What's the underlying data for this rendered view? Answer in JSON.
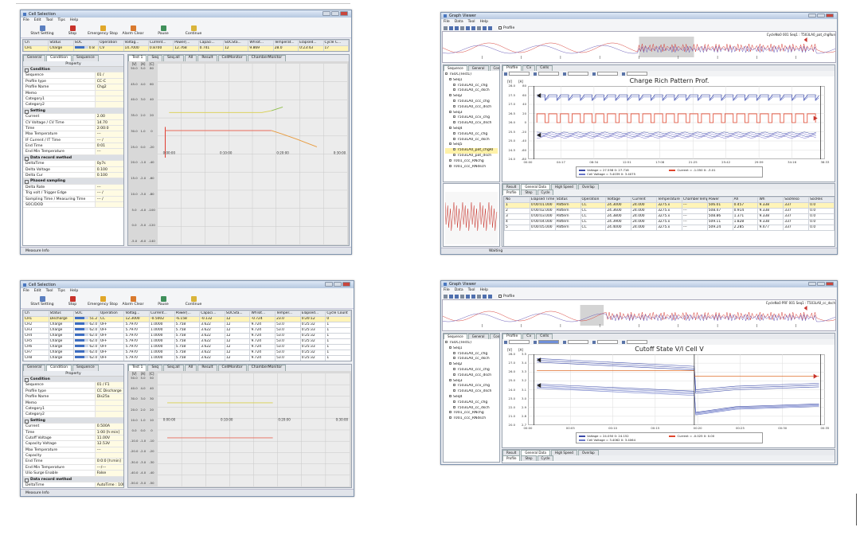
{
  "windows": [
    {
      "title": "Cell Selection",
      "menu": [
        "File",
        "Edit",
        "Tool",
        "Tips",
        "Help"
      ],
      "toolbar": [
        "Start Setting",
        "Stop",
        "Emergency Stop",
        "Alarm Clear",
        "Pause",
        "Continue"
      ],
      "grid": {
        "headers": [
          "Ch",
          "Status",
          "SOC",
          "Operation",
          "Voltag...",
          "Current...",
          "Power[...",
          "Capaci...",
          "SOCSta...",
          "WhTot...",
          "Temperat...",
          "Elapsed...",
          "Cycle C..."
        ],
        "rows": [
          [
            "CH1",
            "Charge",
            "0.8",
            "CV",
            "14.7000",
            "0.8700",
            "12.768",
            "0.741",
            "12",
            "9.869",
            "28.0",
            "0:23:43",
            "17"
          ]
        ]
      },
      "tabs": [
        "General",
        "Condition",
        "Sequence"
      ],
      "property_header": "Property",
      "properties": [
        {
          "group": "Condition"
        },
        {
          "name": "Sequence",
          "value": "01 /"
        },
        {
          "name": "Profile type",
          "value": "CC-C"
        },
        {
          "name": "Profile Name",
          "value": "Chg2"
        },
        {
          "name": "Memo"
        },
        {
          "name": "Category1"
        },
        {
          "name": "Category2"
        },
        {
          "group": "Setting"
        },
        {
          "name": "Current",
          "value": "2.00"
        },
        {
          "name": "CV Voltage / CV Time",
          "value": "14.70"
        },
        {
          "name": "Time",
          "value": "2:00:0"
        },
        {
          "name": "Max Temperature",
          "value": "---"
        },
        {
          "name": "IF Current / IT Time",
          "value": "--- /"
        },
        {
          "name": "End Time",
          "value": "0:01"
        },
        {
          "name": "End Min Temperature",
          "value": "---"
        },
        {
          "group": "Data record method"
        },
        {
          "name": "DeltaTime",
          "value": "0y7s"
        },
        {
          "name": "Delta Voltage",
          "value": "0.100"
        },
        {
          "name": "Delta Cur",
          "value": "0.100"
        },
        {
          "group": "Phased sampling"
        },
        {
          "name": "Delta Rate",
          "value": "---"
        },
        {
          "name": "Trig volt / Trigger Edge",
          "value": "--- /"
        },
        {
          "name": "Sampling Time / Measuring Time",
          "value": "--- /"
        },
        {
          "name": "SOC/DOD"
        }
      ],
      "chart_tabs": [
        "Test 1",
        "Seq",
        "Seq.all",
        "All",
        "Result",
        "CellMonitor",
        "ChamberMonitor"
      ],
      "yaxes": [
        {
          "head": "[V]",
          "ticks": [
            "50.0",
            "45.0",
            "40.0",
            "35.0",
            "30.0",
            "25.0",
            "20.0",
            "15.0",
            "10.0",
            "5.0",
            "0.0",
            "-5.0"
          ]
        },
        {
          "head": "[A]",
          "ticks": [
            "5.0",
            "4.0",
            "3.0",
            "2.0",
            "1.0",
            "0.0",
            "-1.0",
            "-2.0",
            "-3.0",
            "-4.0",
            "-5.0",
            "-6.0"
          ]
        },
        {
          "head": "[C]",
          "ticks": [
            "80",
            "60",
            "40",
            "20",
            "0",
            "-20",
            "-40",
            "-60",
            "-80",
            "-100",
            "-120",
            "-140"
          ]
        }
      ],
      "xticks": [
        "0:00:00",
        "0:10:00",
        "0:20:00",
        "0:30:00"
      ],
      "footer": "Measure Info"
    },
    {
      "title": "Cell Selection",
      "menu": [
        "File",
        "Edit",
        "Tool",
        "Tips",
        "Help"
      ],
      "toolbar": [
        "Start Setting",
        "Stop",
        "Emergency Stop",
        "Alarm Clear",
        "Pause",
        "Continue"
      ],
      "grid": {
        "headers": [
          "Ch",
          "Status",
          "SOC",
          "Operation",
          "Voltag...",
          "Current...",
          "Power[...",
          "Capaci...",
          "SOCSta...",
          "WhTot...",
          "Temper...",
          "Elapsed...",
          "Cycle Count"
        ],
        "rows": [
          [
            "CH1",
            "Discharge",
            "51.2",
            "CC",
            "12.3000",
            "-0.5002",
            "-6.158",
            "-0.132",
            "12",
            "-0.724",
            "23.0",
            "0:20:12",
            "0"
          ],
          [
            "CH2",
            "Charge",
            "62.0",
            "OFF",
            "5.7970",
            "1.0000",
            "5.758",
            "3.622",
            "12",
            "9.724",
            "53.0",
            "0:25:32",
            "1"
          ],
          [
            "CH3",
            "Charge",
            "62.0",
            "OFF",
            "5.7970",
            "1.0000",
            "5.758",
            "3.622",
            "12",
            "9.724",
            "53.0",
            "0:25:33",
            "1"
          ],
          [
            "CH4",
            "Charge",
            "62.0",
            "OFF",
            "5.7970",
            "1.0000",
            "5.758",
            "3.622",
            "12",
            "9.724",
            "53.0",
            "0:25:32",
            "1"
          ],
          [
            "CH5",
            "Charge",
            "62.0",
            "OFF",
            "5.7970",
            "1.0000",
            "5.758",
            "3.622",
            "12",
            "9.724",
            "53.0",
            "0:25:32",
            "1"
          ],
          [
            "CH6",
            "Charge",
            "62.0",
            "OFF",
            "5.7970",
            "1.0000",
            "5.758",
            "3.622",
            "12",
            "9.724",
            "53.0",
            "0:25:33",
            "1"
          ],
          [
            "CH7",
            "Charge",
            "62.0",
            "OFF",
            "5.7970",
            "1.0000",
            "5.758",
            "3.622",
            "12",
            "9.724",
            "53.0",
            "0:25:32",
            "1"
          ],
          [
            "CH8",
            "Charge",
            "62.0",
            "OFF",
            "5.7970",
            "1.0000",
            "5.758",
            "3.622",
            "12",
            "9.724",
            "53.0",
            "0:25:32",
            "1"
          ]
        ]
      },
      "tabs": [
        "General",
        "Condition",
        "Sequence"
      ],
      "property_header": "Property",
      "properties": [
        {
          "group": "Condition"
        },
        {
          "name": "Sequence",
          "value": "01 / F1"
        },
        {
          "name": "Profile type",
          "value": "CC Discharge"
        },
        {
          "name": "Profile Name",
          "value": "Dis25a"
        },
        {
          "name": "Memo"
        },
        {
          "name": "Category1"
        },
        {
          "name": "Category2"
        },
        {
          "group": "Setting"
        },
        {
          "name": "Current",
          "value": "0.500A"
        },
        {
          "name": "Time",
          "value": "1:00 [h:min]"
        },
        {
          "name": "Cutoff Voltage",
          "value": "11.00V"
        },
        {
          "name": "Capacity Voltage",
          "value": "12.53V"
        },
        {
          "name": "Max Temperature",
          "value": "---"
        },
        {
          "name": "Capacity"
        },
        {
          "name": "End Time",
          "value": "0:0:0 [h:min]"
        },
        {
          "name": "End Min Temperature",
          "value": "---/---"
        },
        {
          "name": "Ulio Surge Enable",
          "value": "False"
        },
        {
          "group": "Data record method"
        },
        {
          "name": "DeltaTime",
          "value": "AutoTime : 10MPs"
        }
      ],
      "chart_tabs": [
        "Test 1",
        "Seq",
        "Seq.all",
        "All",
        "Result",
        "CellMonitor",
        "ChamberMonitor"
      ],
      "yaxes": [
        {
          "head": "[V]",
          "ticks": [
            "50.0",
            "40.0",
            "30.0",
            "20.0",
            "10.0",
            "0.0",
            "-10.0",
            "-20.0",
            "-30.0",
            "-40.0",
            "-50.0"
          ]
        },
        {
          "head": "[A]",
          "ticks": [
            "5.0",
            "4.0",
            "3.0",
            "2.0",
            "1.0",
            "0.0",
            "-1.0",
            "-2.0",
            "-3.0",
            "-4.0",
            "-5.0"
          ]
        },
        {
          "head": "[C]",
          "ticks": [
            "50",
            "40",
            "30",
            "20",
            "10",
            "0",
            "-10",
            "-20",
            "-30",
            "-40",
            "-50"
          ]
        }
      ],
      "xticks": [
        "0:00:00",
        "0:10:00",
        "0:20:00",
        "0:30:00"
      ],
      "footer": "Measure Info"
    },
    {
      "title": "Graph Viewer",
      "menu": [
        "File",
        "Data",
        "Tool",
        "Help"
      ],
      "toolbar_check": "Profile",
      "overview_label": "CycleNo0  001 Seq1 : T503LA0_pat_chgRun",
      "side_tabs": [
        "Sequence",
        "General",
        "Condition"
      ],
      "tree": [
        {
          "text": "TSOC(Test1)",
          "children": [
            {
              "text": "Seq1",
              "children": [
                {
                  "text": "T503LA0_cc_chg"
                },
                {
                  "text": "T503LA0_cc_dsch"
                }
              ]
            },
            {
              "text": "Seq2",
              "children": [
                {
                  "text": "T503LA0_ccc_chg"
                },
                {
                  "text": "T503LA0_ccc_dsch"
                }
              ]
            },
            {
              "text": "Seq3",
              "children": [
                {
                  "text": "T503LA0_ccv_chg"
                },
                {
                  "text": "T503LA0_ccv_dsch"
                }
              ]
            },
            {
              "text": "Seq4",
              "children": [
                {
                  "text": "T503LA0_cc_chg"
                },
                {
                  "text": "T503LA0_cc_dsch"
                }
              ]
            },
            {
              "text": "Seq5",
              "children": [
                {
                  "text": "T503LA0_pat_chgRI"
                },
                {
                  "text": "T503LA0_pat_dsch"
                }
              ]
            },
            {
              "text": "T001_ccc_RNchg"
            },
            {
              "text": "T001_ccc_RNdsch"
            }
          ]
        }
      ],
      "chart_tabs": [
        "Profile",
        "Cv",
        "Cells"
      ],
      "chart_title": "Charge Rich Pattern Prof.",
      "yaxes": [
        {
          "head": "[V]",
          "ticks": [
            "28.0",
            "27.5",
            "27.0",
            "26.5",
            "26.0",
            "25.5",
            "25.0",
            "24.5",
            "24.0"
          ]
        },
        {
          "head": "[A]",
          "ticks": [
            "80",
            "60",
            "40",
            "20",
            "0",
            "-20",
            "-40",
            "-60",
            "-80"
          ]
        }
      ],
      "xticks": [
        "00:00",
        "04:17",
        "08:34",
        "12:51",
        "17:08",
        "21:25",
        "25:42",
        "29:59",
        "34:16",
        "38:33"
      ],
      "legend": [
        "Voltage = 27.558   0: 27.716",
        "Current = -1.050   0: -3.01",
        "Cell Voltage = 3.4039   0: 3.4075"
      ],
      "bottom_tabs": [
        "Result",
        "General Data",
        "High Speed",
        "Overlap"
      ],
      "result_tabs": [
        "Profile",
        "Step",
        "Cycle"
      ],
      "table": {
        "headers": [
          "No",
          "Elapsed Time",
          "Status",
          "Operation",
          "Voltage",
          "Current",
          "Temperature",
          "ChamberTemp",
          "Power",
          "Ah",
          "Wh",
          "SocReso",
          "SocRes"
        ],
        "rows": [
          [
            "1",
            "0:00:01.000",
            "Pattern",
            "CC",
            "24.3000",
            "24.000",
            "3275.x",
            "---",
            "506.01",
            "0.457",
            "9.338",
            "337",
            "0.0"
          ],
          [
            "2",
            "0:00:02.000",
            "Pattern",
            "CC",
            "24.3600",
            "24.000",
            "3275.x",
            "---",
            "508.47",
            "0.914",
            "9.338",
            "337",
            "0.0"
          ],
          [
            "3",
            "0:00:03.000",
            "Pattern",
            "CC",
            "24.3800",
            "24.000",
            "3275.x",
            "---",
            "508.86",
            "1.371",
            "9.338",
            "337",
            "0.0"
          ],
          [
            "4",
            "0:00:04.000",
            "Pattern",
            "CC",
            "24.3900",
            "24.000",
            "3275.x",
            "---",
            "509.11",
            "1.828",
            "9.338",
            "337",
            "0.0"
          ],
          [
            "5",
            "0:00:05.000",
            "Pattern",
            "CC",
            "24.4000",
            "24.000",
            "3275.x",
            "---",
            "509.24",
            "2.285",
            "9.477",
            "337",
            "0.0"
          ]
        ]
      },
      "status": "Waiting"
    },
    {
      "title": "Graph Viewer",
      "menu": [
        "File",
        "Data",
        "Tool",
        "Help"
      ],
      "toolbar_check": "Profile",
      "overview_label": "CycleNo0 PRF 001 Seq1 : T503LA0_cc_dsch",
      "side_tabs": [
        "Sequence",
        "General",
        "Condition"
      ],
      "tree": [
        {
          "text": "TSOC(Test1)",
          "children": [
            {
              "text": "Seq1",
              "children": [
                {
                  "text": "T503LA0_cc_chg"
                },
                {
                  "text": "T503LA0_cc_dsch"
                }
              ]
            },
            {
              "text": "Seq2",
              "children": [
                {
                  "text": "T503LA0_ccc_chg"
                },
                {
                  "text": "T503LA0_ccc_dsch"
                }
              ]
            },
            {
              "text": "Seq3",
              "children": [
                {
                  "text": "T503LA0_ccv_chg"
                },
                {
                  "text": "T503LA0_ccv_dsch"
                }
              ]
            },
            {
              "text": "Seq4",
              "children": [
                {
                  "text": "T503LA0_cc_chg"
                },
                {
                  "text": "T503LA0_cc_dsch"
                }
              ]
            },
            {
              "text": "T001_ccc_RNchg"
            },
            {
              "text": "T001_ccc_RNdsch"
            }
          ]
        }
      ],
      "chart_tabs": [
        "Profile",
        "Cv",
        "Cells"
      ],
      "chart_title": "Cutoff State V/I Cell V",
      "yaxes": [
        {
          "head": "[V]",
          "ticks": [
            "28.0",
            "27.0",
            "26.0",
            "25.0",
            "24.0",
            "23.0",
            "22.0",
            "21.0",
            "20.0"
          ]
        },
        {
          "head": "[A]",
          "ticks": [
            "3.5",
            "3.4",
            "3.3",
            "3.2",
            "3.1",
            "3.0",
            "2.9",
            "2.8",
            "2.7"
          ]
        }
      ],
      "xticks": [
        "00:00",
        "00:05",
        "00:10",
        "00:15",
        "00:20",
        "00:25",
        "00:30",
        "00:35"
      ],
      "legend": [
        "Voltage = 24.050   0: 24.152",
        "Current = -0.025   0: 0.00",
        "Cell Voltage = 3.4062   0: 3.4064"
      ],
      "bottom_tabs": [
        "Result",
        "General Data",
        "High Speed",
        "Overlap"
      ],
      "result_tabs": [
        "Profile",
        "Step",
        "Cycle"
      ]
    }
  ]
}
